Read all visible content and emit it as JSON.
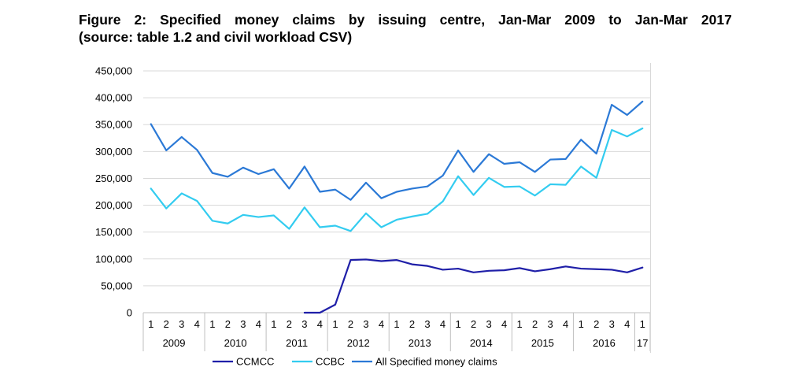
{
  "title": {
    "line1_words": [
      "Figure",
      "2:",
      "Specified",
      "money",
      "claims",
      "by",
      "issuing",
      "centre,",
      "Jan-Mar",
      "2009",
      "to",
      "Jan-Mar",
      "2017"
    ],
    "line2": "(source: table 1.2 and civil workload CSV)"
  },
  "chart_data": {
    "type": "line",
    "title": "Figure 2: Specified money claims by issuing centre, Jan-Mar 2009 to Jan-Mar 2017 (source: table 1.2 and civil workload CSV)",
    "quarters": [
      "1",
      "2",
      "3",
      "4",
      "1",
      "2",
      "3",
      "4",
      "1",
      "2",
      "3",
      "4",
      "1",
      "2",
      "3",
      "4",
      "1",
      "2",
      "3",
      "4",
      "1",
      "2",
      "3",
      "4",
      "1",
      "2",
      "3",
      "4",
      "1",
      "2",
      "3",
      "4",
      "1"
    ],
    "years": [
      "2009",
      "2010",
      "2011",
      "2012",
      "2013",
      "2014",
      "2015",
      "2016",
      "17"
    ],
    "ylim": [
      0,
      450000
    ],
    "yticks": [
      "0",
      "50,000",
      "100,000",
      "150,000",
      "200,000",
      "250,000",
      "300,000",
      "350,000",
      "400,000",
      "450,000"
    ],
    "ytick_values": [
      0,
      50000,
      100000,
      150000,
      200000,
      250000,
      300000,
      350000,
      400000,
      450000
    ],
    "grid": true,
    "legend_position": "bottom",
    "series": [
      {
        "name": "CCMCC",
        "color": "#1f1fa8",
        "values": [
          null,
          null,
          null,
          null,
          null,
          null,
          null,
          null,
          null,
          null,
          0,
          0,
          15000,
          98000,
          99000,
          96000,
          98000,
          90000,
          87000,
          80000,
          82000,
          75000,
          78000,
          79000,
          83000,
          77000,
          81000,
          86000,
          82000,
          81000,
          80000,
          75000,
          84000
        ]
      },
      {
        "name": "CCBC",
        "color": "#33ccf0",
        "values": [
          231000,
          194000,
          222000,
          208000,
          171000,
          166000,
          182000,
          178000,
          181000,
          156000,
          196000,
          159000,
          162000,
          152000,
          185000,
          159000,
          173000,
          179000,
          184000,
          207000,
          254000,
          219000,
          251000,
          234000,
          235000,
          218000,
          239000,
          238000,
          272000,
          251000,
          340000,
          328000,
          343000
        ]
      },
      {
        "name": "All Specified money claims",
        "color": "#2b79d6",
        "values": [
          351000,
          302000,
          327000,
          303000,
          260000,
          253000,
          270000,
          258000,
          267000,
          231000,
          272000,
          225000,
          229000,
          210000,
          242000,
          213000,
          225000,
          231000,
          235000,
          255000,
          302000,
          262000,
          295000,
          277000,
          280000,
          262000,
          285000,
          286000,
          322000,
          296000,
          387000,
          368000,
          393000
        ]
      }
    ]
  }
}
